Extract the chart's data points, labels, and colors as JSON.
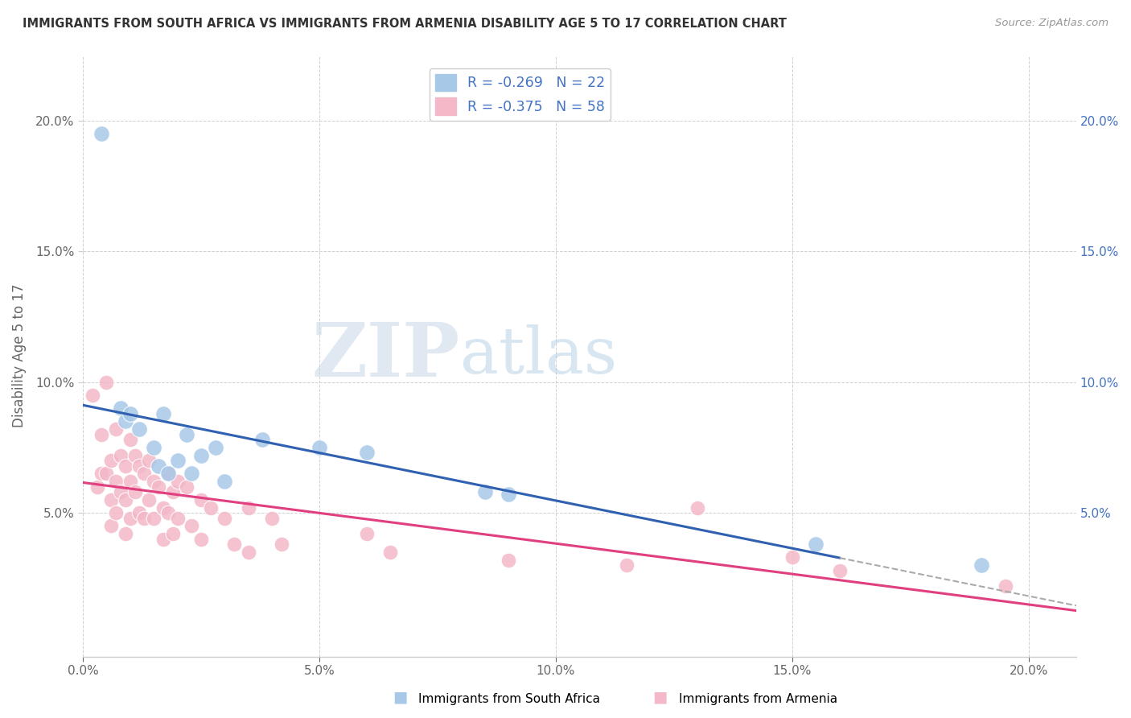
{
  "title": "IMMIGRANTS FROM SOUTH AFRICA VS IMMIGRANTS FROM ARMENIA DISABILITY AGE 5 TO 17 CORRELATION CHART",
  "source": "Source: ZipAtlas.com",
  "ylabel": "Disability Age 5 to 17",
  "xlim": [
    0.0,
    0.21
  ],
  "ylim": [
    -0.005,
    0.225
  ],
  "xticks": [
    0.0,
    0.05,
    0.1,
    0.15,
    0.2
  ],
  "yticks": [
    0.05,
    0.1,
    0.15,
    0.2
  ],
  "ytick_labels": [
    "5.0%",
    "10.0%",
    "15.0%",
    "20.0%"
  ],
  "xtick_labels": [
    "0.0%",
    "5.0%",
    "10.0%",
    "15.0%",
    "20.0%"
  ],
  "legend_blue_label": "R = -0.269   N = 22",
  "legend_pink_label": "R = -0.375   N = 58",
  "legend_blue_color": "#a8c8e8",
  "legend_pink_color": "#f4b8c8",
  "trend_blue_color": "#3060b0",
  "trend_pink_color": "#e04080",
  "watermark_zip": "ZIP",
  "watermark_atlas": "atlas",
  "blue_scatter": [
    [
      0.004,
      0.195
    ],
    [
      0.008,
      0.09
    ],
    [
      0.009,
      0.085
    ],
    [
      0.01,
      0.088
    ],
    [
      0.012,
      0.082
    ],
    [
      0.015,
      0.075
    ],
    [
      0.016,
      0.068
    ],
    [
      0.017,
      0.088
    ],
    [
      0.018,
      0.065
    ],
    [
      0.02,
      0.07
    ],
    [
      0.022,
      0.08
    ],
    [
      0.023,
      0.065
    ],
    [
      0.025,
      0.072
    ],
    [
      0.028,
      0.075
    ],
    [
      0.03,
      0.062
    ],
    [
      0.038,
      0.078
    ],
    [
      0.05,
      0.075
    ],
    [
      0.06,
      0.073
    ],
    [
      0.085,
      0.058
    ],
    [
      0.09,
      0.057
    ],
    [
      0.155,
      0.038
    ],
    [
      0.19,
      0.03
    ]
  ],
  "pink_scatter": [
    [
      0.002,
      0.095
    ],
    [
      0.003,
      0.06
    ],
    [
      0.004,
      0.08
    ],
    [
      0.004,
      0.065
    ],
    [
      0.005,
      0.1
    ],
    [
      0.005,
      0.065
    ],
    [
      0.006,
      0.07
    ],
    [
      0.006,
      0.055
    ],
    [
      0.006,
      0.045
    ],
    [
      0.007,
      0.082
    ],
    [
      0.007,
      0.062
    ],
    [
      0.007,
      0.05
    ],
    [
      0.008,
      0.072
    ],
    [
      0.008,
      0.058
    ],
    [
      0.009,
      0.068
    ],
    [
      0.009,
      0.055
    ],
    [
      0.009,
      0.042
    ],
    [
      0.01,
      0.078
    ],
    [
      0.01,
      0.062
    ],
    [
      0.01,
      0.048
    ],
    [
      0.011,
      0.072
    ],
    [
      0.011,
      0.058
    ],
    [
      0.012,
      0.068
    ],
    [
      0.012,
      0.05
    ],
    [
      0.013,
      0.065
    ],
    [
      0.013,
      0.048
    ],
    [
      0.014,
      0.07
    ],
    [
      0.014,
      0.055
    ],
    [
      0.015,
      0.062
    ],
    [
      0.015,
      0.048
    ],
    [
      0.016,
      0.06
    ],
    [
      0.017,
      0.052
    ],
    [
      0.017,
      0.04
    ],
    [
      0.018,
      0.065
    ],
    [
      0.018,
      0.05
    ],
    [
      0.019,
      0.058
    ],
    [
      0.019,
      0.042
    ],
    [
      0.02,
      0.062
    ],
    [
      0.02,
      0.048
    ],
    [
      0.022,
      0.06
    ],
    [
      0.023,
      0.045
    ],
    [
      0.025,
      0.055
    ],
    [
      0.025,
      0.04
    ],
    [
      0.027,
      0.052
    ],
    [
      0.03,
      0.048
    ],
    [
      0.032,
      0.038
    ],
    [
      0.035,
      0.052
    ],
    [
      0.035,
      0.035
    ],
    [
      0.04,
      0.048
    ],
    [
      0.042,
      0.038
    ],
    [
      0.06,
      0.042
    ],
    [
      0.065,
      0.035
    ],
    [
      0.09,
      0.032
    ],
    [
      0.115,
      0.03
    ],
    [
      0.13,
      0.052
    ],
    [
      0.15,
      0.033
    ],
    [
      0.16,
      0.028
    ],
    [
      0.195,
      0.022
    ]
  ],
  "background_color": "#ffffff",
  "grid_color": "#d0d0d0",
  "left_tick_color": "#666666",
  "right_tick_color": "#4472c4",
  "bottom_tick_color": "#4472c4",
  "title_color": "#333333",
  "legend_text_color": "#4472c4",
  "bottom_legend_text_color": "#000000"
}
